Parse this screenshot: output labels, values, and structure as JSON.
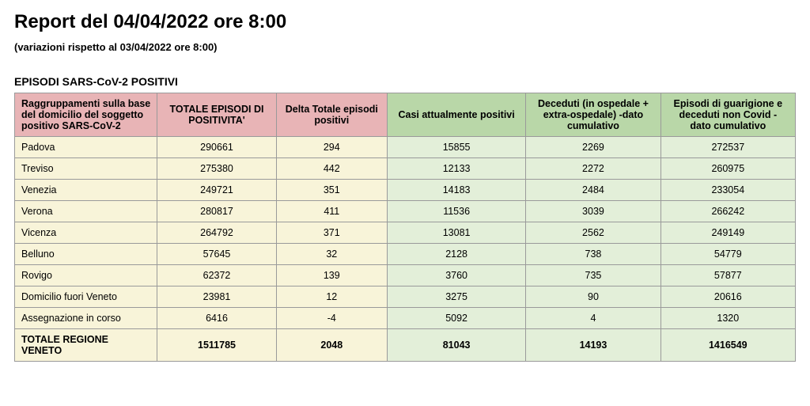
{
  "header": {
    "title": "Report del 04/04/2022 ore 8:00",
    "subtitle": "(variazioni rispetto al 03/04/2022 ore 8:00)",
    "section_title": "EPISODI SARS-CoV-2 POSITIVI"
  },
  "table": {
    "colors": {
      "header_pink": "#e8b4b6",
      "header_green": "#b9d7a8",
      "body_cream": "#f8f4d9",
      "body_lightgreen": "#e3efd9",
      "border": "#9a9a9a"
    },
    "columns": [
      {
        "label": "Raggruppamenti sulla base del domicilio del soggetto positivo SARS-CoV-2",
        "header_group": "pink",
        "body_group": "cream",
        "align_header": "left"
      },
      {
        "label": "TOTALE EPISODI DI POSITIVITA'",
        "header_group": "pink",
        "body_group": "cream"
      },
      {
        "label": "Delta Totale episodi positivi",
        "header_group": "pink",
        "body_group": "cream"
      },
      {
        "label": "Casi attualmente positivi",
        "header_group": "green",
        "body_group": "lgreen"
      },
      {
        "label": "Deceduti (in ospedale + extra-ospedale) -dato cumulativo",
        "header_group": "green",
        "body_group": "lgreen"
      },
      {
        "label": "Episodi di guarigione e deceduti non Covid - dato cumulativo",
        "header_group": "green",
        "body_group": "lgreen"
      }
    ],
    "rows": [
      {
        "label": "Padova",
        "values": [
          "290661",
          "294",
          "15855",
          "2269",
          "272537"
        ]
      },
      {
        "label": "Treviso",
        "values": [
          "275380",
          "442",
          "12133",
          "2272",
          "260975"
        ]
      },
      {
        "label": "Venezia",
        "values": [
          "249721",
          "351",
          "14183",
          "2484",
          "233054"
        ]
      },
      {
        "label": "Verona",
        "values": [
          "280817",
          "411",
          "11536",
          "3039",
          "266242"
        ]
      },
      {
        "label": "Vicenza",
        "values": [
          "264792",
          "371",
          "13081",
          "2562",
          "249149"
        ]
      },
      {
        "label": "Belluno",
        "values": [
          "57645",
          "32",
          "2128",
          "738",
          "54779"
        ]
      },
      {
        "label": "Rovigo",
        "values": [
          "62372",
          "139",
          "3760",
          "735",
          "57877"
        ]
      },
      {
        "label": "Domicilio fuori Veneto",
        "values": [
          "23981",
          "12",
          "3275",
          "90",
          "20616"
        ]
      },
      {
        "label": "Assegnazione in corso",
        "values": [
          "6416",
          "-4",
          "5092",
          "4",
          "1320"
        ]
      }
    ],
    "total_row": {
      "label": "TOTALE REGIONE VENETO",
      "values": [
        "1511785",
        "2048",
        "81043",
        "14193",
        "1416549"
      ]
    }
  }
}
